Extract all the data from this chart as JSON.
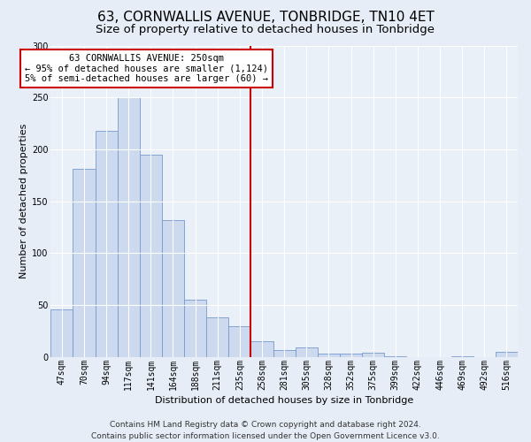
{
  "title": "63, CORNWALLIS AVENUE, TONBRIDGE, TN10 4ET",
  "subtitle": "Size of property relative to detached houses in Tonbridge",
  "xlabel": "Distribution of detached houses by size in Tonbridge",
  "ylabel": "Number of detached properties",
  "categories": [
    "47sqm",
    "70sqm",
    "94sqm",
    "117sqm",
    "141sqm",
    "164sqm",
    "188sqm",
    "211sqm",
    "235sqm",
    "258sqm",
    "281sqm",
    "305sqm",
    "328sqm",
    "352sqm",
    "375sqm",
    "399sqm",
    "422sqm",
    "446sqm",
    "469sqm",
    "492sqm",
    "516sqm"
  ],
  "values": [
    46,
    181,
    218,
    250,
    195,
    132,
    55,
    38,
    30,
    15,
    7,
    9,
    3,
    3,
    4,
    1,
    0,
    0,
    1,
    0,
    5
  ],
  "bar_color": "#ccd9ee",
  "bar_edge_color": "#7799cc",
  "highlight_index": 9,
  "highlight_color": "#cc0000",
  "annotation_text": "63 CORNWALLIS AVENUE: 250sqm\n← 95% of detached houses are smaller (1,124)\n5% of semi-detached houses are larger (60) →",
  "annotation_box_facecolor": "#ffffff",
  "annotation_box_edgecolor": "#cc0000",
  "footer_text": "Contains HM Land Registry data © Crown copyright and database right 2024.\nContains public sector information licensed under the Open Government Licence v3.0.",
  "bg_color": "#e6edf7",
  "plot_bg_color": "#eaf0f8",
  "ylim": [
    0,
    300
  ],
  "yticks": [
    0,
    50,
    100,
    150,
    200,
    250,
    300
  ],
  "title_fontsize": 11,
  "subtitle_fontsize": 9.5,
  "axis_label_fontsize": 8,
  "tick_fontsize": 7,
  "annotation_fontsize": 7.5,
  "footer_fontsize": 6.5
}
